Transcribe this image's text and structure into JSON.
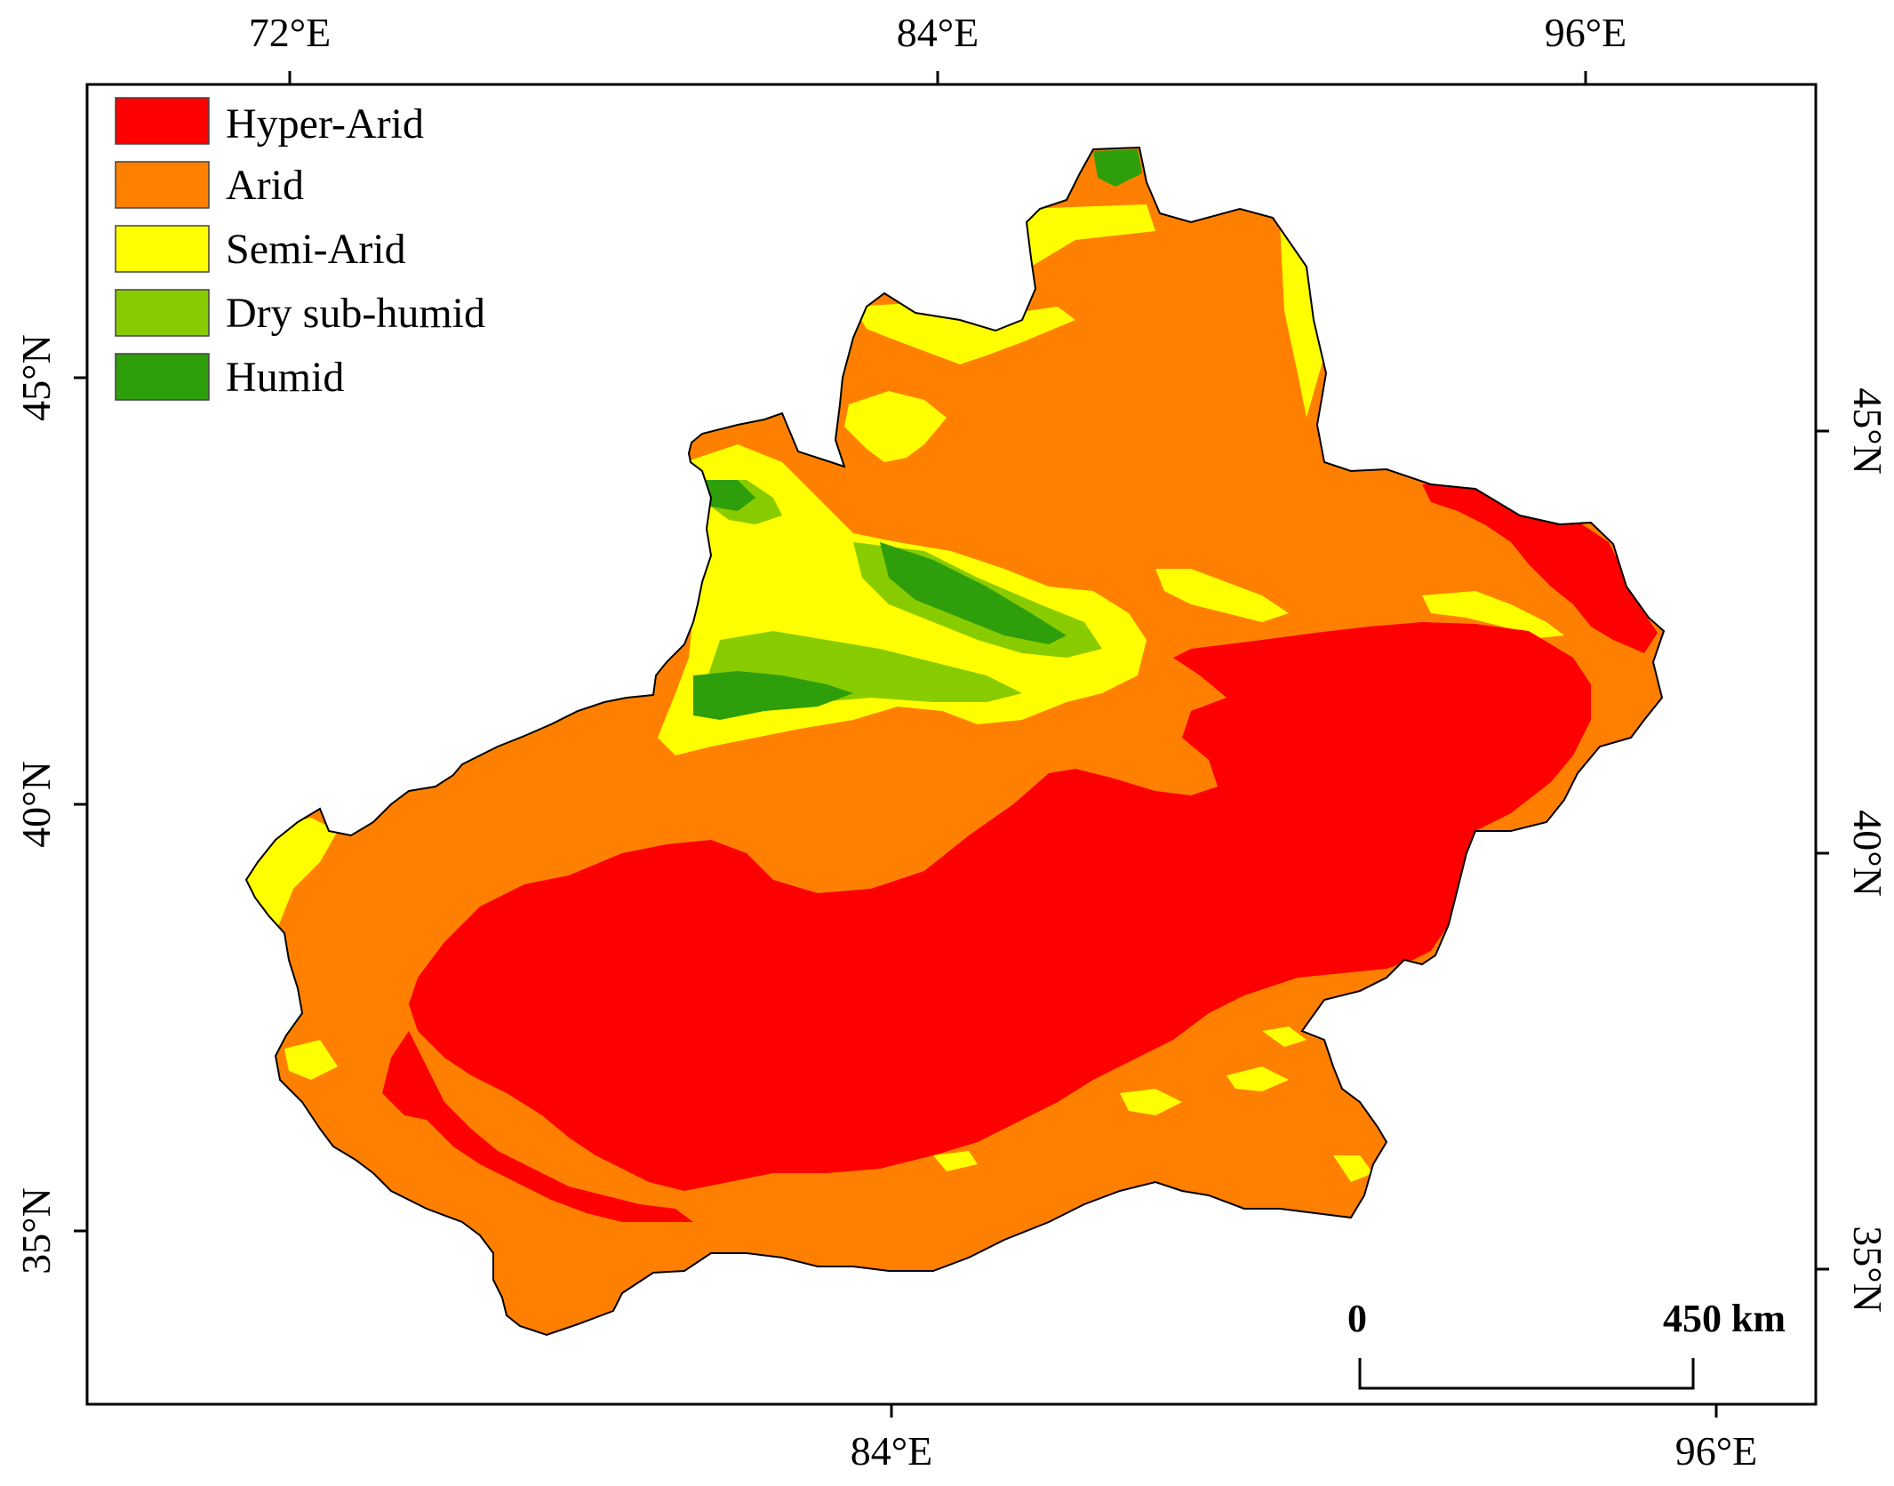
{
  "colors": {
    "hyper_arid": "#ff0000",
    "arid": "#ff8000",
    "semi_arid": "#ffff00",
    "dry_sub_humid": "#88cc00",
    "humid": "#2e9e0a"
  },
  "legend": [
    {
      "label": "Hyper-Arid",
      "color": "#ff0000"
    },
    {
      "label": "Arid",
      "color": "#ff8000"
    },
    {
      "label": "Semi-Arid",
      "color": "#ffff00"
    },
    {
      "label": "Dry sub-humid",
      "color": "#88cc00"
    },
    {
      "label": "Humid",
      "color": "#2e9e0a"
    }
  ],
  "axes": {
    "top": [
      "72°E",
      "84°E",
      "96°E"
    ],
    "bottom": [
      "84°E",
      "96°E"
    ],
    "left": [
      "45°N",
      "40°N",
      "35°N"
    ],
    "right": [
      "45°N",
      "40°N",
      "35°N"
    ]
  },
  "scale_bar": {
    "start": "0",
    "end": "450 km"
  }
}
